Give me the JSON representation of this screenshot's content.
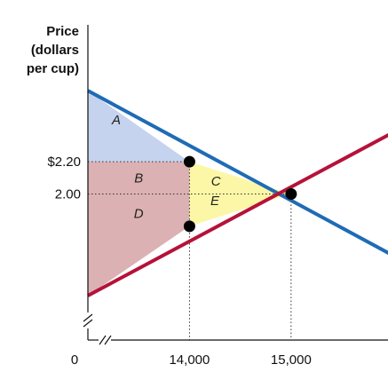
{
  "chart_data": {
    "type": "line",
    "ylabel_lines": [
      "Price",
      "(dollars",
      "per cup)"
    ],
    "xlabel": "",
    "y_ticks": [
      {
        "value": 2.2,
        "label": "$2.20"
      },
      {
        "value": 2.0,
        "label": "2.00"
      }
    ],
    "x_ticks": [
      {
        "value": 14000,
        "label": "14,000"
      },
      {
        "value": 15000,
        "label": "15,000"
      }
    ],
    "origin_label": "0",
    "axis_break": true,
    "series": [
      {
        "key": "demand",
        "color": "#1f6bb5",
        "points": [
          [
            13000,
            2.64
          ],
          [
            16000,
            1.62
          ]
        ]
      },
      {
        "key": "supply",
        "color": "#b5123a",
        "points": [
          [
            13000,
            1.37
          ],
          [
            16000,
            2.38
          ]
        ]
      }
    ],
    "points": [
      {
        "x": 14000,
        "y": 2.2
      },
      {
        "x": 15000,
        "y": 2.0
      },
      {
        "x": 14000,
        "y": 1.8
      }
    ],
    "regions": [
      {
        "label": "A",
        "color": "#c5d3ee",
        "label_at": [
          13280,
          2.46
        ],
        "polygon": [
          [
            13000,
            2.64
          ],
          [
            14000,
            2.2
          ],
          [
            13000,
            2.2
          ]
        ]
      },
      {
        "label": "B",
        "color": "#dcb1b3",
        "label_at": [
          13500,
          2.1
        ],
        "polygon": [
          [
            13000,
            2.2
          ],
          [
            14000,
            2.2
          ],
          [
            14000,
            2.0
          ],
          [
            13000,
            2.0
          ]
        ]
      },
      {
        "label": "D",
        "color": "#dcb1b3",
        "label_at": [
          13500,
          1.88
        ],
        "polygon": [
          [
            13000,
            2.0
          ],
          [
            14000,
            2.0
          ],
          [
            14000,
            1.8
          ],
          [
            13000,
            1.37
          ]
        ]
      },
      {
        "label": "C",
        "color": "#fbf7a6",
        "label_at": [
          14260,
          2.08
        ],
        "polygon": [
          [
            14000,
            2.2
          ],
          [
            15000,
            2.0
          ],
          [
            14000,
            2.0
          ]
        ]
      },
      {
        "label": "E",
        "color": "#fbf7a6",
        "label_at": [
          14250,
          1.96
        ],
        "polygon": [
          [
            14000,
            2.0
          ],
          [
            15000,
            2.0
          ],
          [
            14000,
            1.8
          ]
        ]
      }
    ],
    "ylim": [
      1.37,
      2.85
    ],
    "xlim": [
      13000,
      16050
    ]
  }
}
